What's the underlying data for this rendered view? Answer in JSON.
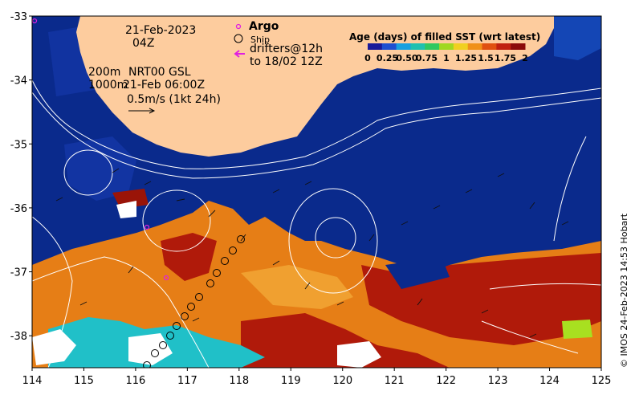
{
  "map": {
    "lon_range": [
      114,
      125
    ],
    "lat_range": [
      -38.5,
      -33
    ],
    "x_ticks": [
      "114",
      "115",
      "116",
      "117",
      "118",
      "119",
      "120",
      "121",
      "122",
      "123",
      "124",
      "125"
    ],
    "y_ticks": [
      "-33",
      "-34",
      "-35",
      "-36",
      "-37",
      "-38"
    ],
    "colors": {
      "land": "#fdcc9e",
      "ocean_fresh": "#0a2a8c",
      "age_mid": "#e67e16",
      "age_old": "#b01a0a",
      "age_young": "#20c0c8",
      "no_data": "#ffffff",
      "contour": "#ffffff"
    }
  },
  "annotations": {
    "date": "21-Feb-2023",
    "hour": "04Z",
    "isobath_200": "200m",
    "isobath_1000": "1000m",
    "product": "NRT00 GSL",
    "product_time": "21-Feb 06:00Z",
    "scale_label": "0.5m/s (1kt 24h)"
  },
  "legend": {
    "argo_label": "Argo",
    "ship_label": "Ship",
    "drifters_line1": "drifters@12h",
    "drifters_line2": "to 18/02 12Z",
    "argo_color": "#e020e0",
    "drifter_color": "#e020e0"
  },
  "colorbar": {
    "title": "Age (days) of filled SST (wrt latest)",
    "ticks": [
      "0",
      "0.25",
      "0.50",
      "0.75",
      "1",
      "1.25",
      "1.5",
      "1.75",
      "2"
    ],
    "colors": [
      "#1a1a9a",
      "#1f4fd0",
      "#18a0e0",
      "#20c0b0",
      "#30c860",
      "#a0d820",
      "#f0d020",
      "#f09018",
      "#e05010",
      "#c02010",
      "#8a0a0a"
    ]
  },
  "credit": "© IMOS 24-Feb-2023 14:53 Hobart"
}
